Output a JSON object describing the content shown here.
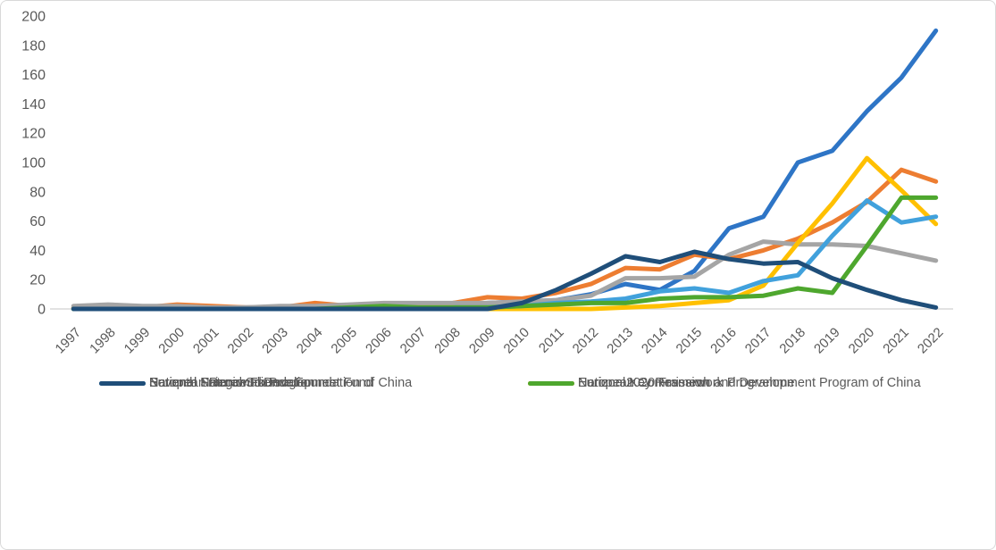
{
  "chart_data": {
    "type": "line",
    "title": "",
    "xlabel": "",
    "ylabel": "",
    "x": [
      1997,
      1998,
      1999,
      2000,
      2001,
      2002,
      2003,
      2004,
      2005,
      2006,
      2007,
      2008,
      2009,
      2010,
      2011,
      2012,
      2013,
      2014,
      2015,
      2016,
      2017,
      2018,
      2019,
      2020,
      2021,
      2022
    ],
    "ylim": [
      0,
      200
    ],
    "ytick_step": 20,
    "yticks": [
      0,
      20,
      40,
      60,
      80,
      100,
      120,
      140,
      160,
      180,
      200
    ],
    "grid": false,
    "legend_position": "bottom",
    "axis_color": "#d9d9d9",
    "label_color": "#595959",
    "series": [
      {
        "name": "National Natural Science Foundation of China",
        "color": "#2E75C6",
        "values": [
          1,
          1,
          1,
          2,
          1,
          1,
          1,
          1,
          1,
          1,
          2,
          2,
          4,
          5,
          6,
          10,
          17,
          13,
          26,
          55,
          63,
          100,
          108,
          135,
          158,
          190
        ]
      },
      {
        "name": "European Commission",
        "color": "#ED7D31",
        "values": [
          1,
          1,
          1,
          3,
          2,
          1,
          1,
          4,
          2,
          2,
          3,
          4,
          8,
          7,
          11,
          17,
          28,
          27,
          37,
          34,
          40,
          48,
          59,
          73,
          95,
          87
        ]
      },
      {
        "name": "National Science Foundation",
        "color": "#A5A5A5",
        "values": [
          2,
          3,
          2,
          2,
          1,
          1,
          2,
          2,
          3,
          4,
          4,
          4,
          4,
          5,
          6,
          9,
          21,
          21,
          22,
          37,
          46,
          44,
          44,
          43,
          38,
          33
        ]
      },
      {
        "name": "Horizon 2020 Framework Programme",
        "color": "#FFC000",
        "values": [
          0,
          0,
          0,
          0,
          0,
          0,
          0,
          0,
          0,
          0,
          0,
          0,
          0,
          0,
          0,
          0,
          1,
          2,
          4,
          6,
          16,
          45,
          72,
          103,
          81,
          58
        ]
      },
      {
        "name": "European Regional Development Fund",
        "color": "#41A1DC",
        "values": [
          0,
          0,
          0,
          0,
          0,
          0,
          0,
          0,
          0,
          0,
          0,
          0,
          1,
          2,
          4,
          5,
          7,
          12,
          14,
          11,
          19,
          23,
          50,
          74,
          59,
          63
        ]
      },
      {
        "name": "National Key Research and Development Program of China",
        "color": "#4EA72E",
        "values": [
          0,
          0,
          0,
          0,
          0,
          0,
          0,
          0,
          1,
          2,
          1,
          1,
          1,
          2,
          3,
          4,
          4,
          7,
          8,
          8,
          9,
          14,
          11,
          43,
          76,
          76
        ]
      },
      {
        "name": "Seventh Framework Programme",
        "color": "#1F4E79",
        "values": [
          0,
          0,
          0,
          0,
          0,
          0,
          0,
          0,
          0,
          0,
          0,
          0,
          0,
          4,
          13,
          24,
          36,
          32,
          39,
          34,
          31,
          32,
          21,
          13,
          6,
          1
        ]
      }
    ]
  }
}
